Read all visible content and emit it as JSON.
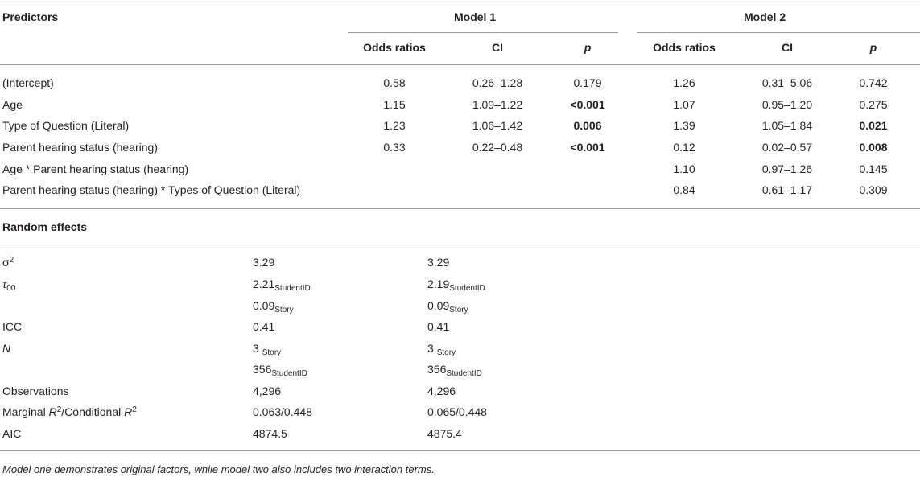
{
  "header": {
    "predictors": "Predictors",
    "model1": "Model 1",
    "model2": "Model 2",
    "cols": [
      "Odds ratios",
      "CI",
      "p",
      "Odds ratios",
      "CI",
      "p"
    ]
  },
  "rows": [
    {
      "label": "(Intercept)",
      "or1": "0.58",
      "ci1": "0.26–1.28",
      "p1": "0.179",
      "p1_bold": false,
      "or2": "1.26",
      "ci2": "0.31–5.06",
      "p2": "0.742",
      "p2_bold": false
    },
    {
      "label": "Age",
      "or1": "1.15",
      "ci1": "1.09–1.22",
      "p1": "<0.001",
      "p1_bold": true,
      "or2": "1.07",
      "ci2": "0.95–1.20",
      "p2": "0.275",
      "p2_bold": false
    },
    {
      "label": "Type of Question (Literal)",
      "or1": "1.23",
      "ci1": "1.06–1.42",
      "p1": "0.006",
      "p1_bold": true,
      "or2": "1.39",
      "ci2": "1.05–1.84",
      "p2": "0.021",
      "p2_bold": true
    },
    {
      "label": "Parent hearing status (hearing)",
      "or1": "0.33",
      "ci1": "0.22–0.48",
      "p1": "<0.001",
      "p1_bold": true,
      "or2": "0.12",
      "ci2": "0.02–0.57",
      "p2": "0.008",
      "p2_bold": true
    },
    {
      "label": "Age * Parent hearing status (hearing)",
      "or1": "",
      "ci1": "",
      "p1": "",
      "p1_bold": false,
      "or2": "1.10",
      "ci2": "0.97–1.26",
      "p2": "0.145",
      "p2_bold": false
    },
    {
      "label": "Parent hearing status (hearing) * Types of Question (Literal)",
      "or1": "",
      "ci1": "",
      "p1": "",
      "p1_bold": false,
      "or2": "0.84",
      "ci2": "0.61–1.17",
      "p2": "0.309",
      "p2_bold": false
    }
  ],
  "random": {
    "title": "Random effects",
    "sigma_label": "σ",
    "sigma_sup": "2",
    "sigma_m1": "3.29",
    "sigma_m2": "3.29",
    "tau_label": "τ",
    "tau_sub": "00",
    "tau_m1_a": "2.21",
    "tau_m1_a_sub": "StudentID",
    "tau_m1_b": "0.09",
    "tau_m1_b_sub": "Story",
    "tau_m2_a": "2.19",
    "tau_m2_a_sub": "StudentID",
    "tau_m2_b": "0.09",
    "tau_m2_b_sub": "Story",
    "icc_label": "ICC",
    "icc_m1": "0.41",
    "icc_m2": "0.41",
    "n_label": "N",
    "n_m1_a": "3 ",
    "n_m1_a_sub": "Story",
    "n_m1_b": "356",
    "n_m1_b_sub": "StudentID",
    "n_m2_a": "3 ",
    "n_m2_a_sub": "Story",
    "n_m2_b": "356",
    "n_m2_b_sub": "StudentID",
    "obs_label": "Observations",
    "obs_m1": "4,296",
    "obs_m2": "4,296",
    "r2_label_a": "Marginal ",
    "r2_label_R": "R",
    "r2_label_sup": "2",
    "r2_label_b": "/Conditional ",
    "r2_m1": "0.063/0.448",
    "r2_m2": "0.065/0.448",
    "aic_label": "AIC",
    "aic_m1": "4874.5",
    "aic_m2": "4875.4"
  },
  "footnote": "Model one demonstrates original factors, while model two also includes two interaction terms."
}
